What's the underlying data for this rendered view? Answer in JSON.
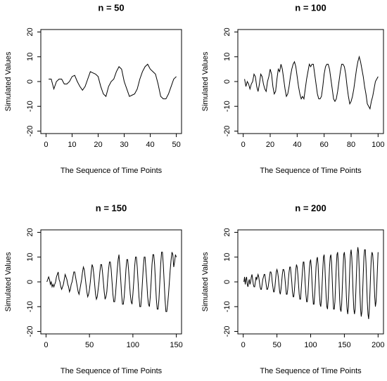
{
  "chart_data": [
    {
      "type": "line",
      "title": "n = 50",
      "xlabel": "The Sequence of Time Points",
      "ylabel": "Simulated Values",
      "color": "#000000",
      "x": [
        1,
        2,
        3,
        4,
        5,
        6,
        7,
        8,
        9,
        10,
        11,
        12,
        13,
        14,
        15,
        16,
        17,
        18,
        19,
        20,
        21,
        22,
        23,
        24,
        25,
        26,
        27,
        28,
        29,
        30,
        31,
        32,
        33,
        34,
        35,
        36,
        37,
        38,
        39,
        40,
        41,
        42,
        43,
        44,
        45,
        46,
        47,
        48,
        49,
        50
      ],
      "values": [
        1,
        1,
        -3,
        0,
        1,
        1,
        -1,
        -1,
        0,
        2,
        2.5,
        0,
        -2,
        -3.5,
        -2,
        1,
        4,
        3.5,
        3,
        2,
        -2,
        -5,
        -6,
        -2,
        0,
        1,
        4,
        6,
        5,
        0,
        -3,
        -6,
        -5.5,
        -5,
        -3,
        1,
        4,
        6,
        7,
        5,
        4,
        3,
        -1,
        -6,
        -7,
        -7,
        -5,
        -2,
        1,
        2
      ],
      "xlim": [
        -2,
        52
      ],
      "xticks": [
        0,
        10,
        20,
        30,
        40,
        50
      ],
      "ylim": [
        -21,
        21
      ],
      "yticks": [
        -20,
        -10,
        0,
        10,
        20
      ]
    },
    {
      "type": "line",
      "title": "n = 100",
      "xlabel": "The Sequence of Time Points",
      "ylabel": "Simulated Values",
      "color": "#000000",
      "x": [
        1,
        2,
        3,
        4,
        5,
        6,
        7,
        8,
        9,
        10,
        11,
        12,
        13,
        14,
        15,
        16,
        17,
        18,
        19,
        20,
        21,
        22,
        23,
        24,
        25,
        26,
        27,
        28,
        29,
        30,
        31,
        32,
        33,
        34,
        35,
        36,
        37,
        38,
        39,
        40,
        41,
        42,
        43,
        44,
        45,
        46,
        47,
        48,
        49,
        50,
        51,
        52,
        53,
        54,
        55,
        56,
        57,
        58,
        59,
        60,
        61,
        62,
        63,
        64,
        65,
        66,
        67,
        68,
        69,
        70,
        71,
        72,
        73,
        74,
        75,
        76,
        77,
        78,
        79,
        80,
        81,
        82,
        83,
        84,
        85,
        86,
        87,
        88,
        89,
        90,
        91,
        92,
        93,
        94,
        95,
        96,
        97,
        98,
        99,
        100
      ],
      "values": [
        1,
        -2,
        0,
        -1,
        -3,
        -1,
        0,
        3,
        2,
        -2,
        -4,
        -1,
        3,
        2,
        -1,
        -3,
        -4,
        0,
        2,
        5,
        3,
        -2,
        -5,
        -4,
        1,
        5,
        4,
        7,
        5,
        1,
        -3,
        -6,
        -5,
        -2,
        2,
        5,
        7,
        8,
        6,
        2,
        -2,
        -5,
        -7,
        -6,
        -7,
        -3,
        1,
        4,
        7,
        6,
        7,
        7,
        3,
        -1,
        -5,
        -7,
        -7,
        -6,
        -2,
        3,
        6,
        7,
        7,
        5,
        1,
        -3,
        -7,
        -8,
        -7,
        -4,
        0,
        4,
        7,
        7,
        6,
        3,
        -2,
        -6,
        -9,
        -8,
        -6,
        -3,
        1,
        5,
        8,
        10,
        8,
        5,
        2,
        -2,
        -5,
        -9,
        -10,
        -11,
        -8,
        -6,
        -3,
        0,
        1,
        2
      ],
      "xlim": [
        -4,
        104
      ],
      "xticks": [
        0,
        20,
        40,
        60,
        80,
        100
      ],
      "ylim": [
        -21,
        21
      ],
      "yticks": [
        -20,
        -10,
        0,
        10,
        20
      ]
    },
    {
      "type": "line",
      "title": "n = 150",
      "xlabel": "The Sequence of Time Points",
      "ylabel": "Simulated Values",
      "color": "#000000",
      "x": [
        1,
        2,
        3,
        4,
        5,
        6,
        7,
        8,
        9,
        10,
        11,
        12,
        13,
        14,
        15,
        16,
        17,
        18,
        19,
        20,
        21,
        22,
        23,
        24,
        25,
        26,
        27,
        28,
        29,
        30,
        31,
        32,
        33,
        34,
        35,
        36,
        37,
        38,
        39,
        40,
        41,
        42,
        43,
        44,
        45,
        46,
        47,
        48,
        49,
        50,
        51,
        52,
        53,
        54,
        55,
        56,
        57,
        58,
        59,
        60,
        61,
        62,
        63,
        64,
        65,
        66,
        67,
        68,
        69,
        70,
        71,
        72,
        73,
        74,
        75,
        76,
        77,
        78,
        79,
        80,
        81,
        82,
        83,
        84,
        85,
        86,
        87,
        88,
        89,
        90,
        91,
        92,
        93,
        94,
        95,
        96,
        97,
        98,
        99,
        100,
        101,
        102,
        103,
        104,
        105,
        106,
        107,
        108,
        109,
        110,
        111,
        112,
        113,
        114,
        115,
        116,
        117,
        118,
        119,
        120,
        121,
        122,
        123,
        124,
        125,
        126,
        127,
        128,
        129,
        130,
        131,
        132,
        133,
        134,
        135,
        136,
        137,
        138,
        139,
        140,
        141,
        142,
        143,
        144,
        145,
        146,
        147,
        148,
        149,
        150
      ],
      "values": [
        0,
        1,
        2,
        1,
        -1,
        0,
        -2,
        -1,
        -2,
        -1,
        0,
        2,
        3,
        4,
        1,
        0,
        -2,
        -3,
        -2,
        -1,
        1,
        3,
        2,
        1,
        -1,
        -2,
        -4,
        -3,
        -1,
        0,
        2,
        4,
        4,
        2,
        0,
        -2,
        -4,
        -5,
        -3,
        -1,
        1,
        4,
        6,
        5,
        2,
        -1,
        -4,
        -6,
        -5,
        -3,
        0,
        4,
        7,
        6,
        3,
        -1,
        -5,
        -7,
        -6,
        -3,
        0,
        4,
        7,
        7,
        4,
        0,
        -4,
        -7,
        -6,
        -4,
        1,
        5,
        8,
        8,
        5,
        0,
        -5,
        -8,
        -8,
        -5,
        0,
        5,
        9,
        11,
        6,
        1,
        -5,
        -9,
        -9,
        -6,
        -1,
        5,
        9,
        9,
        5,
        0,
        -5,
        -8,
        -9,
        -5,
        0,
        6,
        10,
        10,
        6,
        0,
        -6,
        -10,
        -10,
        -6,
        0,
        6,
        10,
        10,
        5,
        0,
        -6,
        -9,
        -10,
        -6,
        0,
        7,
        11,
        11,
        7,
        0,
        -7,
        -11,
        -11,
        -7,
        0,
        7,
        12,
        12,
        7,
        0,
        -7,
        -12,
        -12,
        -9,
        -5,
        0,
        5,
        9,
        12,
        11,
        6,
        8,
        11,
        10
      ],
      "xlim": [
        -6,
        156
      ],
      "xticks": [
        0,
        50,
        100,
        150
      ],
      "ylim": [
        -21,
        21
      ],
      "yticks": [
        -20,
        -10,
        0,
        10,
        20
      ]
    },
    {
      "type": "line",
      "title": "n = 200",
      "xlabel": "The Sequence of Time Points",
      "ylabel": "Simulated Values",
      "color": "#000000",
      "x": [
        1,
        2,
        3,
        4,
        5,
        6,
        7,
        8,
        9,
        10,
        11,
        12,
        13,
        14,
        15,
        16,
        17,
        18,
        19,
        20,
        21,
        22,
        23,
        24,
        25,
        26,
        27,
        28,
        29,
        30,
        31,
        32,
        33,
        34,
        35,
        36,
        37,
        38,
        39,
        40,
        41,
        42,
        43,
        44,
        45,
        46,
        47,
        48,
        49,
        50,
        51,
        52,
        53,
        54,
        55,
        56,
        57,
        58,
        59,
        60,
        61,
        62,
        63,
        64,
        65,
        66,
        67,
        68,
        69,
        70,
        71,
        72,
        73,
        74,
        75,
        76,
        77,
        78,
        79,
        80,
        81,
        82,
        83,
        84,
        85,
        86,
        87,
        88,
        89,
        90,
        91,
        92,
        93,
        94,
        95,
        96,
        97,
        98,
        99,
        100,
        101,
        102,
        103,
        104,
        105,
        106,
        107,
        108,
        109,
        110,
        111,
        112,
        113,
        114,
        115,
        116,
        117,
        118,
        119,
        120,
        121,
        122,
        123,
        124,
        125,
        126,
        127,
        128,
        129,
        130,
        131,
        132,
        133,
        134,
        135,
        136,
        137,
        138,
        139,
        140,
        141,
        142,
        143,
        144,
        145,
        146,
        147,
        148,
        149,
        150,
        151,
        152,
        153,
        154,
        155,
        156,
        157,
        158,
        159,
        160,
        161,
        162,
        163,
        164,
        165,
        166,
        167,
        168,
        169,
        170,
        171,
        172,
        173,
        174,
        175,
        176,
        177,
        178,
        179,
        180,
        181,
        182,
        183,
        184,
        185,
        186,
        187,
        188,
        189,
        190,
        191,
        192,
        193,
        194,
        195,
        196,
        197,
        198,
        199,
        200
      ],
      "values": [
        0,
        2,
        -1,
        1,
        2,
        -1,
        -2,
        0,
        1,
        -1,
        0,
        2,
        3,
        1,
        -1,
        -2,
        -2,
        0,
        2,
        1,
        2,
        3,
        2,
        0,
        -2,
        -3,
        -3,
        -1,
        1,
        2,
        3,
        3,
        1,
        -1,
        -3,
        -3,
        -2,
        0,
        2,
        4,
        4,
        3,
        0,
        -2,
        -4,
        -4,
        -2,
        1,
        4,
        5,
        4,
        2,
        -1,
        -4,
        -5,
        -3,
        0,
        3,
        5,
        5,
        4,
        1,
        -2,
        -5,
        -5,
        -3,
        1,
        4,
        6,
        6,
        3,
        0,
        -4,
        -6,
        -6,
        -3,
        1,
        5,
        7,
        6,
        3,
        -1,
        -5,
        -7,
        -7,
        -3,
        1,
        5,
        8,
        8,
        4,
        -1,
        -5,
        -8,
        -8,
        -5,
        0,
        5,
        8,
        9,
        6,
        0,
        -5,
        -9,
        -9,
        -5,
        0,
        6,
        9,
        10,
        7,
        1,
        -5,
        -9,
        -10,
        -7,
        -1,
        5,
        10,
        11,
        7,
        0,
        -6,
        -10,
        -11,
        -7,
        0,
        6,
        10,
        11,
        8,
        1,
        -6,
        -11,
        -11,
        -8,
        -1,
        6,
        11,
        12,
        8,
        1,
        -7,
        -11,
        -12,
        -9,
        -2,
        5,
        11,
        12,
        9,
        2,
        -6,
        -11,
        -13,
        -10,
        -3,
        5,
        11,
        13,
        10,
        3,
        -5,
        -11,
        -13,
        -11,
        -4,
        4,
        11,
        14,
        12,
        5,
        -4,
        -11,
        -14,
        -12,
        -5,
        3,
        10,
        13,
        13,
        8,
        0,
        -8,
        -13,
        -15,
        -11,
        -4,
        4,
        10,
        12,
        11,
        7,
        1,
        -6,
        -10,
        -8,
        -2,
        5,
        12
      ],
      "xlim": [
        -8,
        208
      ],
      "xticks": [
        0,
        50,
        100,
        150,
        200
      ],
      "ylim": [
        -21,
        21
      ],
      "yticks": [
        -20,
        -10,
        0,
        10,
        20
      ]
    }
  ]
}
